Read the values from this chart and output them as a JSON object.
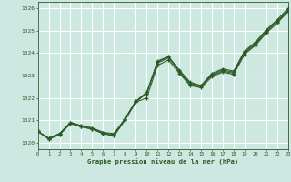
{
  "title": "Graphe pression niveau de la mer (hPa)",
  "bg_color": "#cce8e0",
  "grid_color": "#ffffff",
  "line_color": "#2d5a27",
  "x_ticks": [
    0,
    1,
    2,
    3,
    4,
    5,
    6,
    7,
    8,
    9,
    10,
    11,
    12,
    13,
    14,
    15,
    16,
    17,
    18,
    19,
    20,
    21,
    22,
    23
  ],
  "y_min": 1019.7,
  "y_max": 1026.3,
  "y_ticks": [
    1020,
    1021,
    1022,
    1023,
    1024,
    1025,
    1026
  ],
  "series_main": [
    1020.5,
    1020.2,
    1020.4,
    1020.9,
    1020.75,
    1020.65,
    1020.45,
    1020.4,
    1021.05,
    1021.85,
    1022.2,
    1023.55,
    1023.8,
    1023.2,
    1022.65,
    1022.55,
    1023.05,
    1023.25,
    1023.15,
    1024.05,
    1024.45,
    1025.0,
    1025.45,
    1025.95
  ],
  "series_low": [
    1020.5,
    1020.15,
    1020.35,
    1020.85,
    1020.7,
    1020.6,
    1020.4,
    1020.3,
    1021.0,
    1021.8,
    1022.0,
    1023.45,
    1023.7,
    1023.1,
    1022.55,
    1022.45,
    1022.95,
    1023.15,
    1023.05,
    1023.95,
    1024.35,
    1024.9,
    1025.35,
    1025.85
  ],
  "series_high": [
    1020.5,
    1020.2,
    1020.4,
    1020.9,
    1020.75,
    1020.65,
    1020.45,
    1020.35,
    1021.05,
    1021.85,
    1022.25,
    1023.6,
    1023.85,
    1023.25,
    1022.7,
    1022.55,
    1023.1,
    1023.3,
    1023.2,
    1024.1,
    1024.5,
    1025.05,
    1025.5,
    1026.0
  ],
  "series_spike": [
    1020.5,
    1020.15,
    1020.35,
    1020.85,
    1020.7,
    1020.6,
    1020.4,
    1020.3,
    1021.0,
    1021.8,
    1022.2,
    1023.65,
    1023.85,
    1023.15,
    1022.6,
    1022.5,
    1023.0,
    1023.2,
    1023.1,
    1024.0,
    1024.4,
    1024.95,
    1025.4,
    1025.9
  ]
}
